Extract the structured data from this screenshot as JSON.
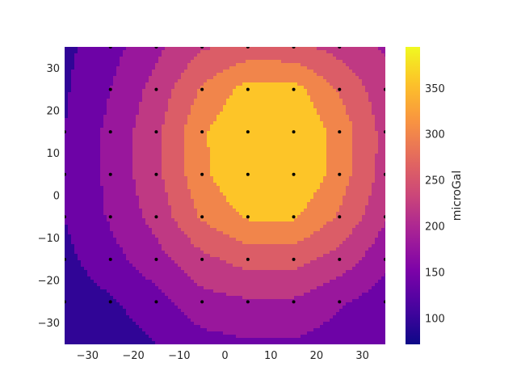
{
  "chart_data": {
    "type": "contour",
    "title": "",
    "xlabel": "",
    "ylabel": "",
    "xlim": [
      -35,
      35
    ],
    "ylim": [
      -35,
      35
    ],
    "xticks": [
      -30,
      -20,
      -10,
      0,
      10,
      20,
      30
    ],
    "yticks": [
      -30,
      -20,
      -10,
      0,
      10,
      20,
      30
    ],
    "colorbar": {
      "label": "microGal",
      "range": [
        72,
        395
      ],
      "ticks": [
        100,
        150,
        200,
        250,
        300,
        350
      ],
      "colormap": "plasma"
    },
    "contour_levels": [
      72,
      120,
      160,
      200,
      240,
      280,
      320,
      395
    ],
    "station_x": [
      -35,
      -25,
      -15,
      -5,
      5,
      15,
      25,
      35
    ],
    "station_y": [
      35,
      25,
      15,
      5,
      -5,
      -15,
      -25,
      -35
    ],
    "grid_values": [
      [
        110,
        145,
        190,
        235,
        255,
        250,
        225,
        195
      ],
      [
        115,
        160,
        215,
        285,
        335,
        335,
        275,
        215
      ],
      [
        120,
        170,
        230,
        315,
        360,
        360,
        305,
        225
      ],
      [
        125,
        170,
        230,
        310,
        365,
        365,
        300,
        225
      ],
      [
        120,
        165,
        215,
        285,
        325,
        325,
        275,
        205
      ],
      [
        110,
        145,
        185,
        230,
        255,
        255,
        225,
        170
      ],
      [
        95,
        115,
        145,
        185,
        195,
        195,
        165,
        140
      ],
      [
        80,
        95,
        120,
        145,
        155,
        155,
        140,
        120
      ]
    ],
    "stations": [
      [
        -25,
        35
      ],
      [
        -15,
        35
      ],
      [
        -5,
        35
      ],
      [
        5,
        35
      ],
      [
        15,
        35
      ],
      [
        25,
        35
      ],
      [
        -25,
        25
      ],
      [
        -15,
        25
      ],
      [
        -5,
        25
      ],
      [
        5,
        25
      ],
      [
        15,
        25
      ],
      [
        25,
        25
      ],
      [
        35,
        25
      ],
      [
        -35,
        15
      ],
      [
        -25,
        15
      ],
      [
        -15,
        15
      ],
      [
        -5,
        15
      ],
      [
        5,
        15
      ],
      [
        15,
        15
      ],
      [
        25,
        15
      ],
      [
        35,
        15
      ],
      [
        -35,
        5
      ],
      [
        -25,
        5
      ],
      [
        -15,
        5
      ],
      [
        -5,
        5
      ],
      [
        5,
        5
      ],
      [
        15,
        5
      ],
      [
        25,
        5
      ],
      [
        35,
        5
      ],
      [
        -35,
        -5
      ],
      [
        -25,
        -5
      ],
      [
        -15,
        -5
      ],
      [
        -5,
        -5
      ],
      [
        5,
        -5
      ],
      [
        15,
        -5
      ],
      [
        25,
        -5
      ],
      [
        35,
        -5
      ],
      [
        -35,
        -15
      ],
      [
        -25,
        -15
      ],
      [
        -15,
        -15
      ],
      [
        -5,
        -15
      ],
      [
        5,
        -15
      ],
      [
        15,
        -15
      ],
      [
        25,
        -15
      ],
      [
        35,
        -15
      ],
      [
        -35,
        -25
      ],
      [
        -25,
        -25
      ],
      [
        -15,
        -25
      ],
      [
        -5,
        -25
      ],
      [
        5,
        -25
      ],
      [
        15,
        -25
      ],
      [
        25,
        -25
      ],
      [
        35,
        -25
      ]
    ],
    "grid": false
  }
}
